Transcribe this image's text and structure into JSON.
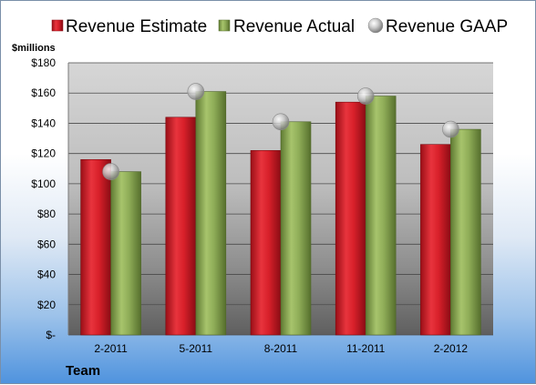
{
  "chart_data": {
    "type": "bar",
    "categories": [
      "2-2011",
      "5-2011",
      "8-2011",
      "11-2011",
      "2-2012"
    ],
    "series": [
      {
        "name": "Revenue Estimate",
        "type": "bar",
        "color": "#c81e2a",
        "values": [
          116,
          144,
          122,
          154,
          126
        ]
      },
      {
        "name": "Revenue Actual",
        "type": "bar",
        "color": "#8fad58",
        "values": [
          108,
          161,
          141,
          158,
          136
        ]
      },
      {
        "name": "Revenue GAAP",
        "type": "scatter",
        "color": "#b8b8b8",
        "values": [
          108,
          161,
          141,
          158,
          136
        ]
      }
    ],
    "ylabel": "$millions",
    "xlabel": "Team",
    "ylim": [
      0,
      180
    ],
    "yticks": [
      "$-",
      "$20",
      "$40",
      "$60",
      "$80",
      "$100",
      "$120",
      "$140",
      "$160",
      "$180"
    ],
    "grid": true,
    "legend": "top"
  }
}
